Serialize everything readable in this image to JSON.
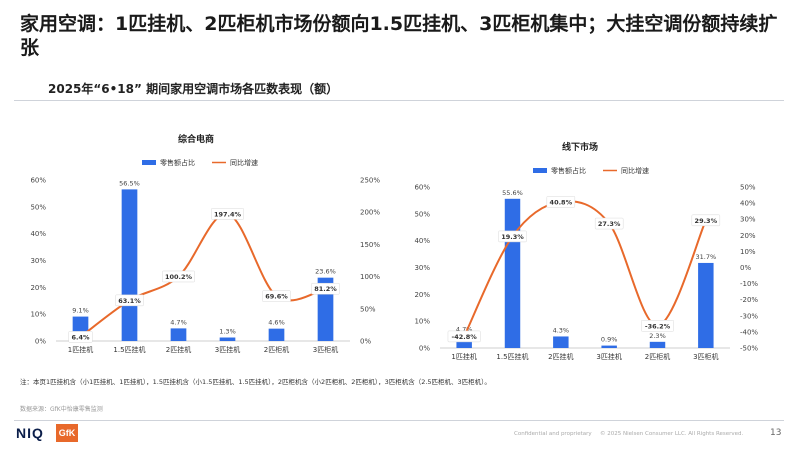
{
  "header": {
    "title": "家用空调：1匹挂机、2匹柜机市场份额向1.5匹挂机、3匹柜机集中；大挂空调份额持续扩张",
    "subtitle": "2025年“6•18” 期间家用空调市场各匹数表现（额）"
  },
  "chart_data": [
    {
      "type": "bar",
      "title": "综合电商",
      "categories": [
        "1匹挂机",
        "1.5匹挂机",
        "2匹挂机",
        "3匹挂机",
        "2匹柜机",
        "3匹柜机"
      ],
      "series": [
        {
          "name": "零售额占比",
          "type": "bar",
          "axis": "left",
          "color": "#2f6de6",
          "values": [
            9.1,
            56.5,
            4.7,
            1.3,
            4.6,
            23.6
          ]
        },
        {
          "name": "同比增速",
          "type": "line",
          "axis": "right",
          "color": "#e8692b",
          "values": [
            6.4,
            63.1,
            100.2,
            197.4,
            69.6,
            81.2
          ]
        }
      ],
      "left_axis": {
        "min": 0,
        "max": 60,
        "step": 10,
        "ticks": [
          "0%",
          "10%",
          "20%",
          "30%",
          "40%",
          "50%",
          "60%"
        ]
      },
      "right_axis": {
        "min": 0,
        "max": 250,
        "step": 50,
        "ticks": [
          "0%",
          "50%",
          "100%",
          "150%",
          "200%",
          "250%"
        ]
      },
      "bar_labels": [
        "9.1%",
        "56.5%",
        "4.7%",
        "1.3%",
        "4.6%",
        "23.6%"
      ],
      "line_labels": [
        "6.4%",
        "63.1%",
        "100.2%",
        "197.4%",
        "69.6%",
        "81.2%"
      ],
      "legend_position": "top"
    },
    {
      "type": "bar",
      "title": "线下市场",
      "categories": [
        "1匹挂机",
        "1.5匹挂机",
        "2匹挂机",
        "3匹挂机",
        "2匹柜机",
        "3匹柜机"
      ],
      "series": [
        {
          "name": "零售额占比",
          "type": "bar",
          "axis": "left",
          "color": "#2f6de6",
          "values": [
            4.7,
            55.6,
            4.3,
            0.9,
            2.3,
            31.7
          ]
        },
        {
          "name": "同比增速",
          "type": "line",
          "axis": "right",
          "color": "#e8692b",
          "values": [
            -42.8,
            19.3,
            40.8,
            27.3,
            -36.2,
            29.3
          ]
        }
      ],
      "left_axis": {
        "min": 0,
        "max": 60,
        "step": 10,
        "ticks": [
          "0%",
          "10%",
          "20%",
          "30%",
          "40%",
          "50%",
          "60%"
        ]
      },
      "right_axis": {
        "min": -50,
        "max": 50,
        "step": 10,
        "ticks": [
          "-50%",
          "-40%",
          "-30%",
          "-20%",
          "-10%",
          "0%",
          "10%",
          "20%",
          "30%",
          "40%",
          "50%"
        ]
      },
      "bar_labels": [
        "4.7%",
        "55.6%",
        "4.3%",
        "0.9%",
        "2.3%",
        "31.7%"
      ],
      "line_labels": [
        "-42.8%",
        "19.3%",
        "40.8%",
        "27.3%",
        "-36.2%",
        "29.3%"
      ],
      "legend_position": "top"
    }
  ],
  "note": "注：本页1匹挂机含（小1匹挂机、1匹挂机），1.5匹挂机含（小1.5匹挂机、1.5匹挂机），2匹柜机含（小2匹柜机、2匹柜机），3匹柜机含（2.5匹柜机、3匹柜机）。",
  "source": "数据来源：GfK中怡康零售监测",
  "footer": {
    "logo_niq": "NIQ",
    "logo_gfk": "GfK",
    "confidential": "Confidential and proprietary",
    "copyright": "© 2025 Nielsen Consumer LLC. All Rights Reserved.",
    "page_number": "13"
  }
}
